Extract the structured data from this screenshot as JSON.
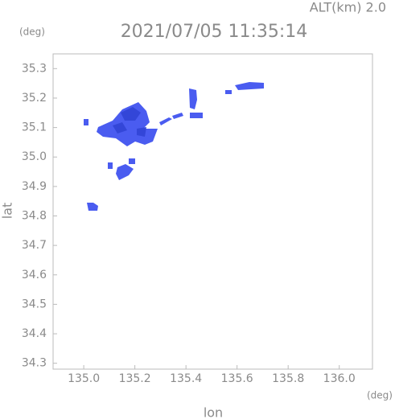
{
  "chart_data": {
    "type": "map",
    "annotation": "ALT(km) 2.0",
    "title": "2021/07/05 11:35:14",
    "y_unit": "(deg)",
    "x_unit": "(deg)",
    "xlabel": "lon",
    "ylabel": "lat",
    "xlim": [
      134.88,
      136.13
    ],
    "ylim": [
      34.28,
      35.35
    ],
    "xticks": [
      {
        "value": 135,
        "label": "135.0"
      },
      135.2,
      135.4,
      135.6,
      135.8,
      {
        "value": 136,
        "label": "136.0"
      }
    ],
    "yticks": [
      34.3,
      34.4,
      34.5,
      34.6,
      34.7,
      34.8,
      34.9,
      {
        "value": 35,
        "label": "35.0"
      },
      35.1,
      35.2,
      35.3
    ]
  }
}
